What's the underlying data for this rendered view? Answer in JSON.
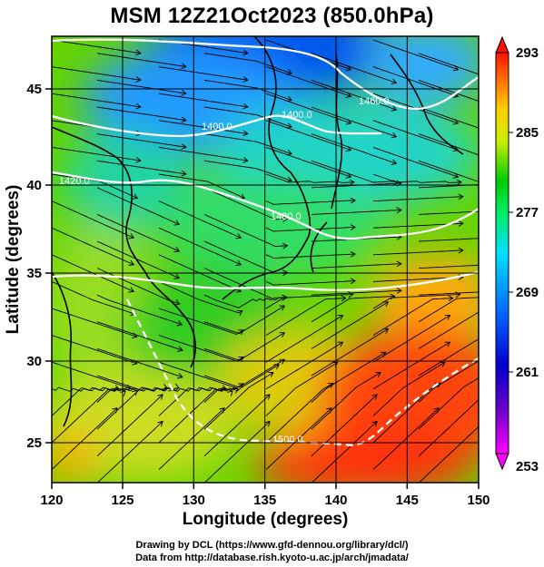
{
  "title": "MSM 12Z21Oct2023 (850.0hPa)",
  "map": {
    "xlabel": "Longitude (degrees)",
    "ylabel": "Latitude  (degrees)",
    "lon_range": [
      120,
      150
    ],
    "lat_range": [
      22.5,
      48
    ],
    "lon_ticks": [
      "120",
      "125",
      "130",
      "135",
      "140",
      "145",
      "150"
    ],
    "lat_ticks": [
      "25",
      "30",
      "35",
      "40",
      "45"
    ],
    "grid": true,
    "geopotential_contours": [
      {
        "label": "1400.0"
      },
      {
        "label": "1400.0"
      },
      {
        "label": "1460.0"
      },
      {
        "label": "1420.0"
      },
      {
        "label": "1480.0"
      },
      {
        "label": "1500.0"
      }
    ]
  },
  "colorbar": {
    "min": 253,
    "max": 293,
    "tick_labels": [
      "293",
      "285",
      "277",
      "269",
      "261",
      "253"
    ],
    "colors": [
      "#ff00ff",
      "#0000cc",
      "#0066ff",
      "#00e0ff",
      "#00ee66",
      "#00cc00",
      "#ccee00",
      "#ffcc00",
      "#ff6600",
      "#ff1100"
    ]
  },
  "credits": {
    "line1": "Drawing by DCL (https://www.gfd-dennou.org/library/dcl/)",
    "line2": "Data from http://database.rish.kyoto-u.ac.jp/arch/jmadata/"
  }
}
